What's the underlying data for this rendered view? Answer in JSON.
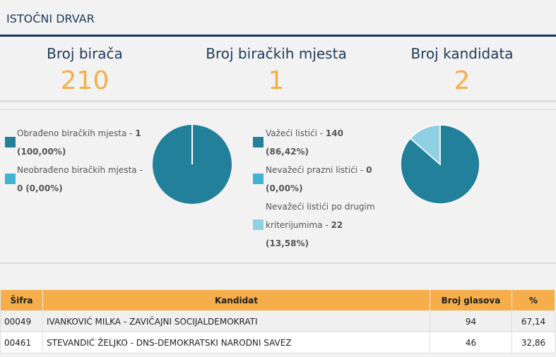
{
  "title": "ISTOČNI DRVAR",
  "stats": [
    {
      "label": "Broj birača",
      "value": "210"
    },
    {
      "label": "Broj biračkih mjesta",
      "value": "1"
    },
    {
      "label": "Broj kandidata",
      "value": "2"
    }
  ],
  "colors": {
    "dark": "#23809a",
    "mid": "#41b4d4",
    "light": "#8fd0e3",
    "accent": "#f6ae4b"
  },
  "legend1": [
    {
      "text": "Obrađeno biračkih mjesta - ",
      "num": "1",
      "pct": "(100,00%)",
      "value": 1
    },
    {
      "text": "Neobrađeno biračkih mjesta - ",
      "num": "0",
      "pct": "(0,00%)",
      "value": 0
    }
  ],
  "legend2": [
    {
      "text": "Važeći listići - ",
      "num": "140",
      "pct": "(86,42%)",
      "value": 140
    },
    {
      "text": "Nevažeći prazni listići - ",
      "num": "0",
      "pct": "(0,00%)",
      "value": 0
    },
    {
      "text1": "Nevažeći listići po drugim",
      "text2": "kriterijumima - ",
      "num": "22",
      "pct": "(13,58%)",
      "value": 22
    }
  ],
  "table": {
    "headers": [
      "Šifra",
      "Kandidat",
      "Broj glasova",
      "%"
    ],
    "rows": [
      [
        "00049",
        "IVANKOVIĆ MILKA - ZAVIČAJNI SOCIJALDEMOKRATI",
        "94",
        "67,14"
      ],
      [
        "00461",
        "STEVANDIĆ ŽELJKO - DNS-DEMOKRATSKI NARODNI SAVEZ",
        "46",
        "32,86"
      ]
    ]
  }
}
